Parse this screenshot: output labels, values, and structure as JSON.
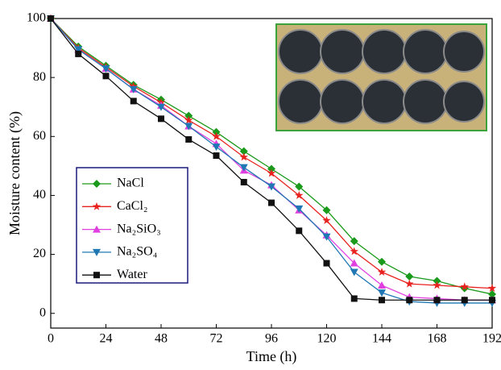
{
  "chart_data": {
    "type": "line",
    "x_label": "Time (h)",
    "y_label": "Moisture content (%)",
    "x": [
      0,
      12,
      24,
      36,
      48,
      60,
      72,
      84,
      96,
      108,
      120,
      132,
      144,
      156,
      168,
      180,
      192
    ],
    "xlim": [
      0,
      192
    ],
    "xticks": [
      0,
      24,
      48,
      72,
      96,
      120,
      144,
      168,
      192
    ],
    "ylim": [
      -5,
      100
    ],
    "yticks": [
      0,
      20,
      40,
      60,
      80,
      100
    ],
    "series": [
      {
        "name": "NaCl",
        "color": "#1a9a1a",
        "marker": "diamond",
        "values": [
          100,
          90.5,
          84,
          77.5,
          72.5,
          67,
          61.5,
          55,
          49,
          43,
          35,
          24.5,
          17.5,
          12.5,
          11,
          8.5,
          6.5
        ]
      },
      {
        "name": "CaCl₂",
        "color": "#e8231f",
        "marker": "star",
        "values": [
          100,
          90,
          83.5,
          77,
          71.5,
          65.5,
          60,
          53,
          47.5,
          40,
          31.5,
          21,
          14,
          10,
          9.5,
          9,
          8.5
        ]
      },
      {
        "name": "Na₂SiO₃",
        "color": "#e040e0",
        "marker": "triangle-up",
        "values": [
          100,
          89.5,
          83,
          76,
          70.5,
          63.5,
          57.5,
          48.5,
          43.5,
          35,
          26.5,
          17,
          9.5,
          5.5,
          5,
          4.5,
          4.5
        ]
      },
      {
        "name": "Na₂SO₄",
        "color": "#1f78b4",
        "marker": "triangle-down",
        "values": [
          100,
          89.5,
          83,
          76,
          70,
          63.5,
          56.5,
          49.5,
          43,
          35.5,
          26,
          14,
          7,
          4,
          3.5,
          3.5,
          3.5
        ]
      },
      {
        "name": "Water",
        "color": "#111111",
        "marker": "square",
        "values": [
          100,
          88,
          80.5,
          72,
          66,
          59,
          53.5,
          44.5,
          37.5,
          28,
          17,
          5,
          4.5,
          4.5,
          4.5,
          4.5,
          4.5
        ]
      }
    ]
  }
}
